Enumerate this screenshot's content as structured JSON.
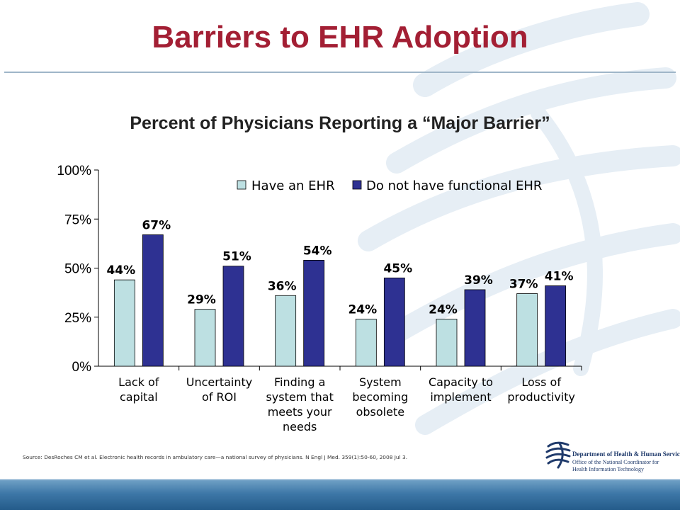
{
  "slide": {
    "title": "Barriers to EHR Adoption",
    "source": "Source: DesRoches CM et al. Electronic health records in ambulatory care—a national survey of physicians. N Engl J Med. 359(1):50-60, 2008 Jul 3.",
    "logo": {
      "line1": "Department of Health & Human Services",
      "line2": "Office of the National Coordinator for",
      "line3": "Health Information Technology"
    }
  },
  "chart_data": {
    "type": "bar",
    "title": "Percent of Physicians Reporting a “Major Barrier”",
    "xlabel": "",
    "ylabel": "",
    "ylim": [
      0,
      100
    ],
    "yticks": [
      "0%",
      "25%",
      "50%",
      "75%",
      "100%"
    ],
    "ytick_values": [
      0,
      25,
      50,
      75,
      100
    ],
    "categories": [
      [
        "Lack of",
        "capital"
      ],
      [
        "Uncertainty",
        "of ROI"
      ],
      [
        "Finding a",
        "system that",
        "meets your",
        "needs"
      ],
      [
        "System",
        "becoming",
        "obsolete"
      ],
      [
        "Capacity to",
        "implement"
      ],
      [
        "Loss of",
        "productivity"
      ]
    ],
    "series": [
      {
        "name": "Have an EHR",
        "values": [
          44,
          29,
          36,
          24,
          24,
          37
        ],
        "labels": [
          "44%",
          "29%",
          "36%",
          "24%",
          "24%",
          "37%"
        ],
        "color": "#bde0e2"
      },
      {
        "name": "Do not have functional EHR",
        "values": [
          67,
          51,
          54,
          45,
          39,
          41
        ],
        "labels": [
          "67%",
          "51%",
          "54%",
          "45%",
          "39%",
          "41%"
        ],
        "color": "#2e3192"
      }
    ],
    "legend": "top-right",
    "grid": false
  }
}
